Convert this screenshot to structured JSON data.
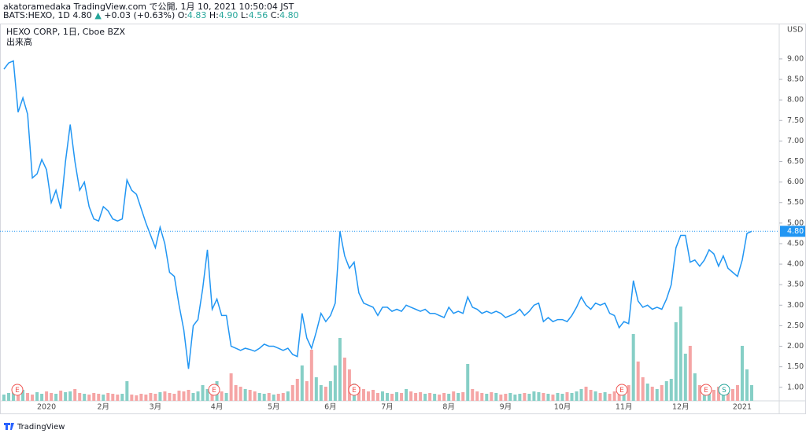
{
  "chart_data": {
    "type": "line",
    "title": "akatoramedaka TradingView.com で公開, 1月 10, 2021 10:50:04 JST",
    "symbol": "BATS:HEXO, 1D",
    "quote": "4.80",
    "change_arrow": "▲",
    "change": "+0.03 (+0.63%)",
    "ohlc": [
      {
        "key": "O:",
        "value": "4.83"
      },
      {
        "key": "H:",
        "value": "4.90"
      },
      {
        "key": "L:",
        "value": "4.56"
      },
      {
        "key": "C:",
        "value": "4.80"
      }
    ],
    "legend_title": "HEXO CORP, 1日, Cboe BZX",
    "volume_title": "出来高",
    "currency": "USD",
    "footer": "TradingView",
    "events": [
      "E",
      "E",
      "E",
      "E",
      "E",
      "S"
    ],
    "categories": [
      null,
      null,
      null,
      null,
      null,
      null,
      null,
      null,
      null,
      "2020",
      null,
      null,
      null,
      null,
      null,
      null,
      null,
      null,
      null,
      null,
      null,
      "2月",
      null,
      null,
      null,
      null,
      null,
      null,
      null,
      null,
      null,
      null,
      "3月",
      null,
      null,
      null,
      null,
      null,
      null,
      null,
      null,
      null,
      null,
      null,
      null,
      "4月",
      null,
      null,
      null,
      null,
      null,
      null,
      null,
      null,
      null,
      null,
      null,
      "5月",
      null,
      null,
      null,
      null,
      null,
      null,
      null,
      null,
      null,
      null,
      null,
      "6月",
      null,
      null,
      null,
      null,
      null,
      null,
      null,
      null,
      null,
      null,
      null,
      "7月",
      null,
      null,
      null,
      null,
      null,
      null,
      null,
      null,
      null,
      null,
      null,
      null,
      "8月",
      null,
      null,
      null,
      null,
      null,
      null,
      null,
      null,
      null,
      null,
      null,
      "9月",
      null,
      null,
      null,
      null,
      null,
      null,
      null,
      null,
      null,
      null,
      null,
      "10月",
      null,
      null,
      null,
      null,
      null,
      null,
      null,
      null,
      null,
      null,
      null,
      null,
      "11月",
      null,
      null,
      null,
      null,
      null,
      null,
      null,
      null,
      null,
      null,
      null,
      "12月",
      null,
      null,
      null,
      null,
      null,
      null,
      null,
      null,
      null,
      null,
      null,
      null,
      "2021",
      null,
      null
    ],
    "series": [
      {
        "name": "HEXO CORP",
        "color": "#2196f3",
        "values": [
          8.75,
          8.9,
          8.95,
          7.7,
          8.05,
          7.65,
          6.1,
          6.2,
          6.55,
          6.3,
          5.5,
          5.8,
          5.35,
          6.5,
          7.4,
          6.5,
          5.8,
          6.0,
          5.4,
          5.1,
          5.05,
          5.4,
          5.3,
          5.1,
          5.05,
          5.1,
          6.05,
          5.8,
          5.7,
          5.35,
          5.0,
          4.7,
          4.4,
          4.9,
          4.5,
          3.8,
          3.7,
          3.0,
          2.4,
          1.45,
          2.5,
          2.65,
          3.4,
          4.35,
          2.9,
          3.15,
          2.75,
          2.75,
          2.0,
          1.95,
          1.9,
          1.95,
          1.92,
          1.88,
          1.95,
          2.05,
          2.0,
          2.0,
          1.95,
          1.9,
          1.95,
          1.8,
          1.75,
          2.8,
          2.2,
          1.95,
          2.35,
          2.8,
          2.6,
          2.75,
          3.05,
          4.8,
          4.2,
          3.9,
          4.05,
          3.3,
          3.05,
          3.0,
          2.95,
          2.75,
          2.95,
          2.95,
          2.85,
          2.9,
          2.85,
          3.0,
          2.95,
          2.9,
          2.85,
          2.9,
          2.8,
          2.8,
          2.75,
          2.7,
          2.95,
          2.8,
          2.85,
          2.8,
          3.2,
          2.95,
          2.9,
          2.8,
          2.85,
          2.8,
          2.85,
          2.8,
          2.7,
          2.75,
          2.8,
          2.9,
          2.75,
          2.85,
          3.0,
          3.05,
          2.6,
          2.7,
          2.6,
          2.65,
          2.65,
          2.6,
          2.75,
          2.95,
          3.2,
          3.0,
          2.9,
          3.05,
          3.0,
          3.05,
          2.8,
          2.75,
          2.45,
          2.6,
          2.55,
          3.6,
          3.1,
          2.95,
          3.0,
          2.9,
          2.95,
          2.9,
          3.15,
          3.5,
          4.4,
          4.7,
          4.7,
          4.05,
          4.1,
          3.95,
          4.1,
          4.35,
          4.25,
          3.95,
          4.2,
          3.9,
          3.8,
          3.7,
          4.1,
          4.75,
          4.8
        ]
      },
      {
        "name": "出来高",
        "axis": "y2",
        "up_color": "#86cfc6",
        "down_color": "#f5a5a5",
        "values": [
          8,
          10,
          12,
          9,
          14,
          10,
          8,
          11,
          9,
          12,
          10,
          9,
          13,
          11,
          12,
          15,
          10,
          9,
          8,
          10,
          9,
          8,
          10,
          9,
          8,
          9,
          25,
          8,
          7,
          9,
          8,
          10,
          9,
          11,
          12,
          10,
          9,
          13,
          12,
          14,
          10,
          12,
          20,
          15,
          18,
          25,
          12,
          10,
          35,
          20,
          18,
          15,
          14,
          12,
          10,
          9,
          10,
          8,
          9,
          10,
          12,
          20,
          28,
          45,
          25,
          65,
          30,
          20,
          18,
          25,
          45,
          80,
          55,
          40,
          22,
          18,
          15,
          12,
          14,
          10,
          12,
          10,
          9,
          11,
          10,
          15,
          12,
          10,
          11,
          9,
          10,
          9,
          8,
          10,
          9,
          12,
          10,
          11,
          47,
          15,
          12,
          10,
          9,
          11,
          10,
          8,
          9,
          10,
          8,
          9,
          10,
          9,
          12,
          11,
          10,
          9,
          8,
          10,
          9,
          11,
          10,
          12,
          15,
          18,
          14,
          12,
          10,
          11,
          9,
          12,
          14,
          12,
          20,
          85,
          50,
          30,
          22,
          18,
          15,
          20,
          25,
          28,
          100,
          120,
          60,
          70,
          35,
          20,
          15,
          12,
          14,
          18,
          12,
          10,
          15,
          20,
          70,
          40,
          20
        ]
      }
    ],
    "last_price": {
      "value": 4.8,
      "label": "4.80"
    },
    "ylim": [
      0.67,
      9.86
    ],
    "y2lim": [
      0,
      480
    ],
    "yticks": [
      {
        "value": 1,
        "label": "1.00"
      },
      {
        "value": 1.5,
        "label": "1.50"
      },
      {
        "value": 2,
        "label": "2.00"
      },
      {
        "value": 2.5,
        "label": "2.50"
      },
      {
        "value": 3,
        "label": "3.00"
      },
      {
        "value": 3.5,
        "label": "3.50"
      },
      {
        "value": 4,
        "label": "4.00"
      },
      {
        "value": 4.5,
        "label": "4.50"
      },
      {
        "value": 5,
        "label": "5.00"
      },
      {
        "value": 5.5,
        "label": "5.50"
      },
      {
        "value": 6,
        "label": "6.00"
      },
      {
        "value": 6.5,
        "label": "6.50"
      },
      {
        "value": 7,
        "label": "7.00"
      },
      {
        "value": 7.5,
        "label": "7.50"
      },
      {
        "value": 8,
        "label": "8.00"
      },
      {
        "value": 8.5,
        "label": "8.50"
      },
      {
        "value": 9,
        "label": "9.00"
      }
    ],
    "grid": false
  }
}
